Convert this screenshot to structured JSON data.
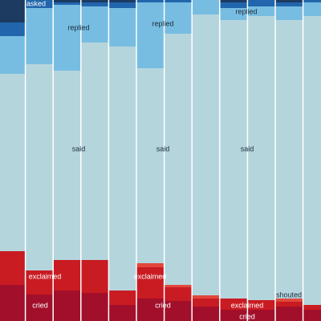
{
  "chart_data": {
    "type": "bar",
    "stacked": true,
    "ylim": [
      0,
      100
    ],
    "categories": [
      null,
      null,
      null,
      null,
      null,
      null,
      null,
      null,
      null,
      null,
      null,
      null
    ],
    "series": [
      {
        "name": "cried",
        "color": "#a10f2b",
        "values": [
          11.25,
          8.25,
          9.5,
          8.75,
          5,
          7,
          6.25,
          4.5,
          3.5,
          3.5,
          4.5,
          3.5
        ]
      },
      {
        "name": "exclaimed",
        "color": "#c91b22",
        "values": [
          10.5,
          7.5,
          9.5,
          10.25,
          4.5,
          9.75,
          4.25,
          2.5,
          3.5,
          3,
          1.5,
          1.5
        ]
      },
      {
        "name": "shouted",
        "color": "#e0483c",
        "values": [
          0,
          0,
          0,
          0,
          0,
          1.25,
          0.75,
          1,
          0,
          0,
          1,
          0
        ]
      },
      {
        "name": "said",
        "color": "#b5d5dd",
        "values": [
          55.25,
          64.25,
          59,
          67.75,
          76,
          60.75,
          78.25,
          87.5,
          86.75,
          88.5,
          86.75,
          90
        ]
      },
      {
        "name": "replied",
        "color": "#77bde1",
        "values": [
          11.75,
          17.5,
          20.5,
          11.25,
          12,
          20.5,
          9.75,
          4.5,
          3.75,
          3,
          4.25,
          4.25
        ]
      },
      {
        "name": "asked",
        "color": "#2166ac",
        "values": [
          4.25,
          2.5,
          0.75,
          1.25,
          1.75,
          0.75,
          0.75,
          0,
          1.75,
          2,
          1.25,
          0.75
        ]
      },
      {
        "color": "#1d3a60",
        "values": [
          7,
          0,
          0.75,
          0.75,
          0.75,
          0,
          0,
          0,
          0.75,
          0,
          0.75,
          0
        ]
      }
    ]
  }
}
